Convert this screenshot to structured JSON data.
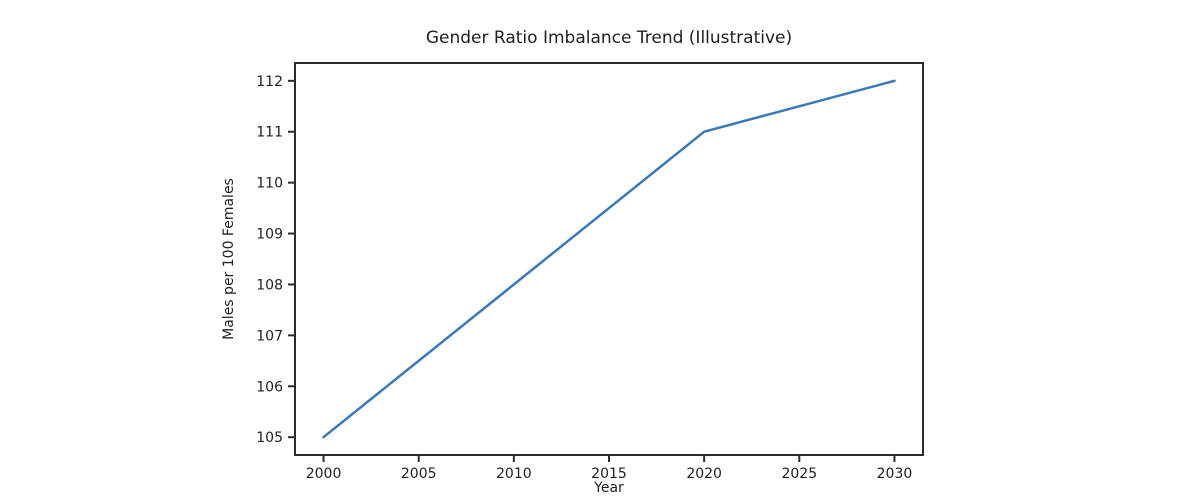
{
  "chart_data": {
    "type": "line",
    "title": "Gender Ratio Imbalance Trend (Illustrative)",
    "xlabel": "Year",
    "ylabel": "Males per 100 Females",
    "x": [
      2000,
      2020,
      2030
    ],
    "y": [
      105,
      111,
      112
    ],
    "series": [
      {
        "name": "Males per 100 Females",
        "x": [
          2000,
          2020,
          2030
        ],
        "values": [
          105,
          111,
          112
        ]
      }
    ],
    "xticks": [
      2000,
      2005,
      2010,
      2015,
      2020,
      2025,
      2030
    ],
    "yticks": [
      105,
      106,
      107,
      108,
      109,
      110,
      111,
      112
    ],
    "xlim": [
      1998.5,
      2031.5
    ],
    "ylim": [
      104.65,
      112.35
    ],
    "grid": false,
    "legend": "none",
    "line_color": "#3a79b8",
    "axis_color": "#2b2b2b",
    "text_color": "#1f1f1f",
    "background_color": "#ffffff"
  }
}
